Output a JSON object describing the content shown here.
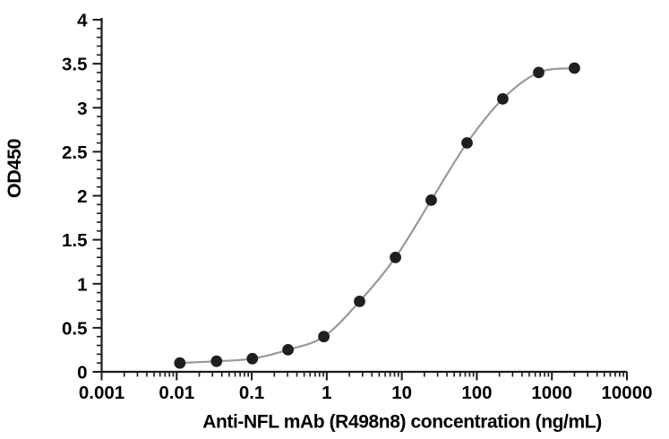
{
  "figure": {
    "background": "#ffffff"
  },
  "chart_data": {
    "type": "scatter",
    "title": "",
    "xlabel": "Anti-NFL mAb (R498n8) concentration (ng/mL)",
    "ylabel": "OD450",
    "x_scale": "log",
    "y_scale": "linear",
    "xlim": [
      0.001,
      10000
    ],
    "ylim": [
      0,
      4
    ],
    "x_ticks": [
      0.001,
      0.01,
      0.1,
      1,
      10,
      100,
      1000,
      10000
    ],
    "x_tick_labels": [
      "0.001",
      "0.01",
      "0.1",
      "1",
      "10",
      "100",
      "1000",
      "10000"
    ],
    "y_ticks": [
      0,
      0.5,
      1,
      1.5,
      2,
      2.5,
      3,
      3.5,
      4
    ],
    "y_tick_labels": [
      "0",
      "0.5",
      "1",
      "1.5",
      "2",
      "2.5",
      "3",
      "3.5",
      "4"
    ],
    "y_minor_step": 0.1,
    "grid": false,
    "legend": false,
    "series": [
      {
        "x": [
          0.011,
          0.034,
          0.102,
          0.305,
          0.914,
          2.74,
          8.23,
          24.7,
          74.1,
          222,
          667,
          2000
        ],
        "y": [
          0.1,
          0.12,
          0.15,
          0.25,
          0.4,
          0.8,
          1.3,
          1.95,
          2.6,
          3.1,
          3.4,
          3.45
        ],
        "marker": "circle",
        "smooth": true
      }
    ],
    "colors": {
      "point": "#1f1f1f",
      "line": "#999999",
      "axis": "#1a1a1a",
      "text": "#000000"
    }
  }
}
